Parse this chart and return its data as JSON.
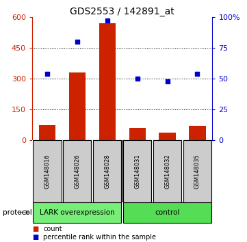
{
  "title": "GDS2553 / 142891_at",
  "samples": [
    "GSM148016",
    "GSM148026",
    "GSM148028",
    "GSM148031",
    "GSM148032",
    "GSM148035"
  ],
  "counts": [
    75,
    330,
    570,
    60,
    38,
    70
  ],
  "percentile_ranks": [
    54,
    80,
    97,
    50,
    48,
    54
  ],
  "left_ylim": [
    0,
    600
  ],
  "left_yticks": [
    0,
    150,
    300,
    450,
    600
  ],
  "right_ylim": [
    0,
    100
  ],
  "right_yticks": [
    0,
    25,
    50,
    75,
    100
  ],
  "right_yticklabels": [
    "0",
    "25",
    "50",
    "75",
    "100%"
  ],
  "bar_color": "#cc2200",
  "scatter_color": "#0000cc",
  "protocol_groups": [
    {
      "label": "LARK overexpression",
      "indices": [
        0,
        1,
        2
      ],
      "color": "#77ee77"
    },
    {
      "label": "control",
      "indices": [
        3,
        4,
        5
      ],
      "color": "#55dd55"
    }
  ],
  "sample_box_color": "#cccccc",
  "legend_count_color": "#cc2200",
  "legend_scatter_color": "#0000cc",
  "title_fontsize": 10,
  "tick_label_color_left": "#cc2200",
  "tick_label_color_right": "#0000cc",
  "bar_width": 0.55
}
